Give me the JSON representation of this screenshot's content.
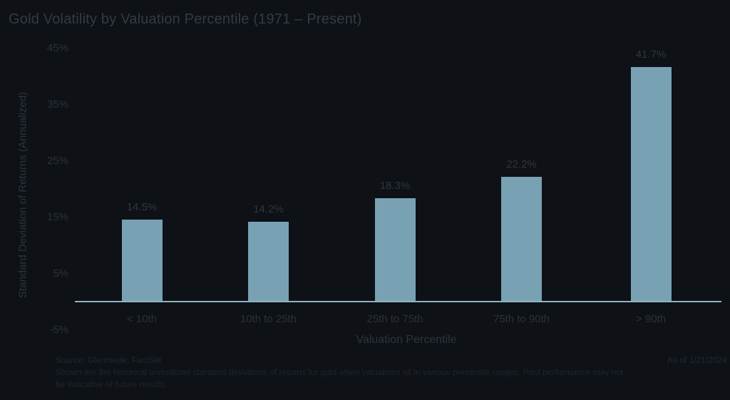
{
  "chart": {
    "title": "Gold Volatility by Valuation Percentile (1971 – Present)",
    "footer": {
      "source": "Source: Glenmede, FactSet",
      "as_of": "As of 1/21/2024",
      "disclaimer": "Shown are the historical annualized standard deviations of returns for gold when valuations sit in various percentile ranges. Past performance may not be indicative of future results."
    }
  },
  "chart_data": {
    "type": "bar",
    "title": "Gold Volatility by Valuation Percentile (1971 – Present)",
    "categories": [
      "< 10th",
      "10th to 25th",
      "25th to 75th",
      "75th to 90th",
      "> 90th"
    ],
    "values": [
      14.5,
      14.2,
      18.3,
      22.2,
      41.7
    ],
    "value_labels": [
      "14.5%",
      "14.2%",
      "18.3%",
      "22.2%",
      "41.7%"
    ],
    "xlabel": "Valuation Percentile",
    "ylabel": "Standard Deviation of Returns (Annualized)",
    "ylim": [
      -5,
      45
    ],
    "yticks": [
      45,
      35,
      25,
      15,
      5,
      -5
    ],
    "ytick_labels": [
      "45%",
      "35%",
      "25%",
      "15%",
      "5%",
      "-5%"
    ],
    "grid": false,
    "legend": false,
    "colors": {
      "background": "#0e1116",
      "bar": "#78a2b3",
      "axis_line": "#8fb4c2",
      "text": "#30353f"
    }
  }
}
